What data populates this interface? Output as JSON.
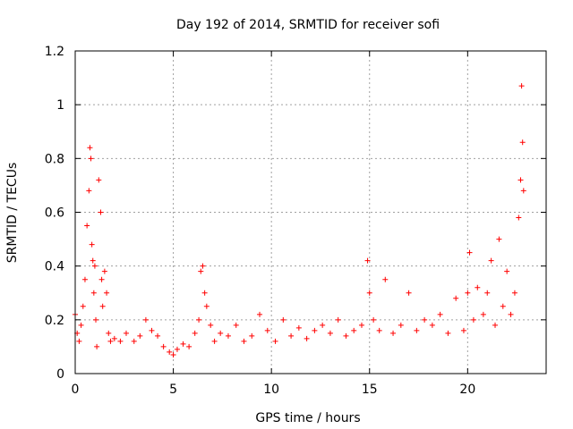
{
  "chart_data": {
    "type": "scatter",
    "title": "Day 192 of 2014, SRMTID for receiver sofi",
    "xlabel": "GPS time / hours",
    "ylabel": "SRMTID / TECUs",
    "xlim": [
      0,
      24
    ],
    "ylim": [
      0,
      1.2
    ],
    "x_ticks": [
      0,
      5,
      10,
      15,
      20
    ],
    "x_tick_labels": [
      "0",
      "5",
      "10",
      "15",
      "20"
    ],
    "y_ticks": [
      0,
      0.2,
      0.4,
      0.6,
      0.8,
      1,
      1.2
    ],
    "y_tick_labels": [
      "0",
      "0.2",
      "0.4",
      "0.6",
      "0.8",
      "1",
      "1.2"
    ],
    "grid": true,
    "marker": "+",
    "color": "#ff0000",
    "series": [
      {
        "name": "SRMTID",
        "x": [
          0.0,
          0.1,
          0.2,
          0.3,
          0.4,
          0.5,
          0.6,
          0.7,
          0.75,
          0.8,
          0.85,
          0.9,
          0.95,
          1.0,
          1.05,
          1.1,
          1.2,
          1.3,
          1.35,
          1.4,
          1.5,
          1.6,
          1.7,
          1.8,
          2.0,
          2.3,
          2.6,
          3.0,
          3.3,
          3.6,
          3.9,
          4.2,
          4.5,
          4.8,
          5.0,
          5.2,
          5.5,
          5.8,
          6.1,
          6.3,
          6.4,
          6.5,
          6.6,
          6.7,
          6.9,
          7.1,
          7.4,
          7.8,
          8.2,
          8.6,
          9.0,
          9.4,
          9.8,
          10.2,
          10.6,
          11.0,
          11.4,
          11.8,
          12.2,
          12.6,
          13.0,
          13.4,
          13.8,
          14.2,
          14.6,
          14.9,
          15.0,
          15.2,
          15.5,
          15.8,
          16.2,
          16.6,
          17.0,
          17.4,
          17.8,
          18.2,
          18.6,
          19.0,
          19.4,
          19.8,
          20.0,
          20.1,
          20.3,
          20.5,
          20.8,
          21.0,
          21.2,
          21.4,
          21.6,
          21.8,
          22.0,
          22.2,
          22.4,
          22.6,
          22.7,
          22.75,
          22.8,
          22.85
        ],
        "y": [
          0.22,
          0.15,
          0.12,
          0.18,
          0.25,
          0.35,
          0.55,
          0.68,
          0.84,
          0.8,
          0.48,
          0.42,
          0.3,
          0.4,
          0.2,
          0.1,
          0.72,
          0.6,
          0.35,
          0.25,
          0.38,
          0.3,
          0.15,
          0.12,
          0.13,
          0.12,
          0.15,
          0.12,
          0.14,
          0.2,
          0.16,
          0.14,
          0.1,
          0.08,
          0.07,
          0.09,
          0.11,
          0.1,
          0.15,
          0.2,
          0.38,
          0.4,
          0.3,
          0.25,
          0.18,
          0.12,
          0.15,
          0.14,
          0.18,
          0.12,
          0.14,
          0.22,
          0.16,
          0.12,
          0.2,
          0.14,
          0.17,
          0.13,
          0.16,
          0.18,
          0.15,
          0.2,
          0.14,
          0.16,
          0.18,
          0.42,
          0.3,
          0.2,
          0.16,
          0.35,
          0.15,
          0.18,
          0.3,
          0.16,
          0.2,
          0.18,
          0.22,
          0.15,
          0.28,
          0.16,
          0.3,
          0.45,
          0.2,
          0.32,
          0.22,
          0.3,
          0.42,
          0.18,
          0.5,
          0.25,
          0.38,
          0.22,
          0.3,
          0.58,
          0.72,
          1.07,
          0.86,
          0.68
        ]
      }
    ]
  }
}
